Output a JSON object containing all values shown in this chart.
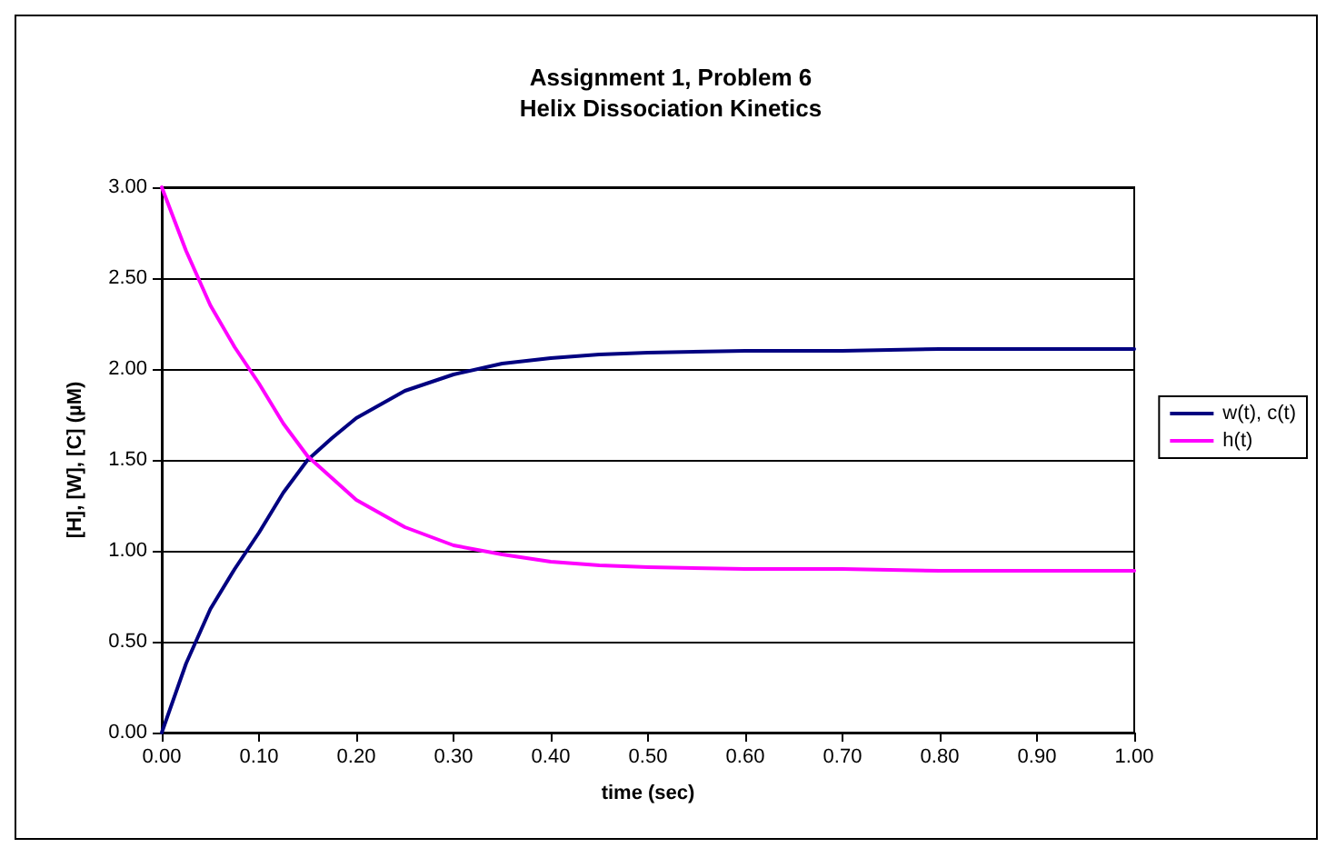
{
  "chart_data": {
    "type": "line",
    "title": "Assignment 1, Problem 6\nHelix Dissociation Kinetics",
    "xlabel": "time (sec)",
    "ylabel": "[H], [W], [C] (µM)",
    "x": [
      0,
      0.025,
      0.05,
      0.075,
      0.1,
      0.125,
      0.15,
      0.175,
      0.2,
      0.25,
      0.3,
      0.35,
      0.4,
      0.45,
      0.5,
      0.6,
      0.7,
      0.8,
      0.9,
      1.0
    ],
    "series": [
      {
        "name": "w(t), c(t)",
        "color": "#000080",
        "values": [
          0,
          0.38,
          0.68,
          0.9,
          1.1,
          1.32,
          1.5,
          1.62,
          1.73,
          1.88,
          1.97,
          2.03,
          2.06,
          2.08,
          2.09,
          2.1,
          2.1,
          2.11,
          2.11,
          2.11
        ]
      },
      {
        "name": "h(t)",
        "color": "#ff00ff",
        "values": [
          3.0,
          2.65,
          2.35,
          2.12,
          1.92,
          1.7,
          1.52,
          1.4,
          1.28,
          1.13,
          1.03,
          0.98,
          0.94,
          0.92,
          0.91,
          0.9,
          0.9,
          0.89,
          0.89,
          0.89
        ]
      }
    ],
    "xlim": [
      0,
      1
    ],
    "xticks": [
      {
        "value": 0,
        "label": "0.00"
      },
      {
        "value": 0.1,
        "label": "0.10"
      },
      {
        "value": 0.2,
        "label": "0.20"
      },
      {
        "value": 0.3,
        "label": "0.30"
      },
      {
        "value": 0.4,
        "label": "0.40"
      },
      {
        "value": 0.5,
        "label": "0.50"
      },
      {
        "value": 0.6,
        "label": "0.60"
      },
      {
        "value": 0.7,
        "label": "0.70"
      },
      {
        "value": 0.8,
        "label": "0.80"
      },
      {
        "value": 0.9,
        "label": "0.90"
      },
      {
        "value": 1,
        "label": "1.00"
      }
    ],
    "ylim": [
      0,
      3
    ],
    "yticks": [
      {
        "value": 0,
        "label": "0.00"
      },
      {
        "value": 0.5,
        "label": "0.50"
      },
      {
        "value": 1,
        "label": "1.00"
      },
      {
        "value": 1.5,
        "label": "1.50"
      },
      {
        "value": 2,
        "label": "2.00"
      },
      {
        "value": 2.5,
        "label": "2.50"
      },
      {
        "value": 3,
        "label": "3.00"
      }
    ],
    "grid": "y",
    "legend": "right",
    "marker": "none",
    "line_style": "solid"
  }
}
